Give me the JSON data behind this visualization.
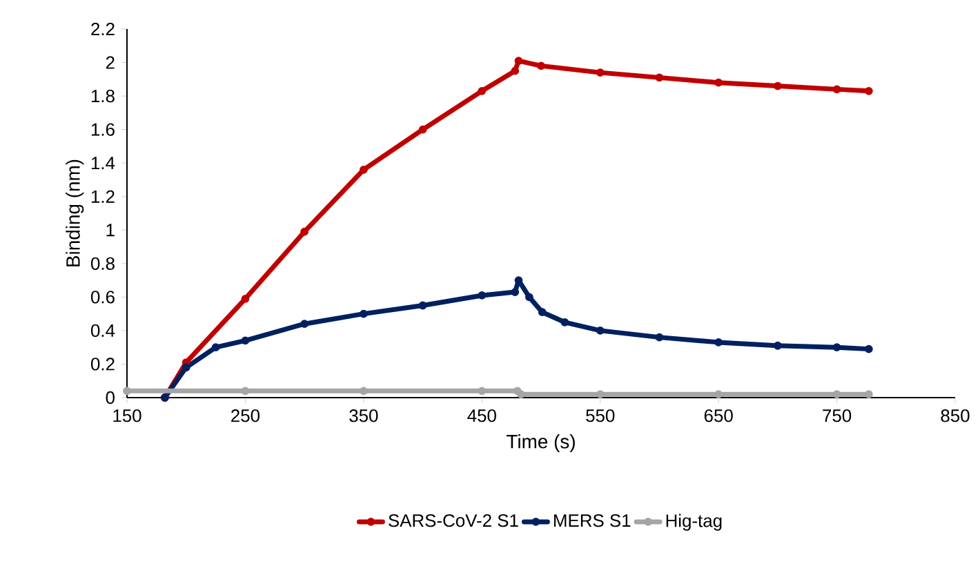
{
  "chart_data": {
    "type": "line",
    "xlabel": "Time (s)",
    "ylabel": "Binding (nm)",
    "xlim": [
      150,
      850
    ],
    "xticks": [
      150,
      250,
      350,
      450,
      550,
      650,
      750,
      850
    ],
    "ylim": [
      0,
      2.2
    ],
    "yticks": [
      0,
      0.2,
      0.4,
      0.6,
      0.8,
      1,
      1.2,
      1.4,
      1.6,
      1.8,
      2,
      2.2
    ],
    "grid": false,
    "legend": "bottom",
    "marker": "circle",
    "line_style": "solid",
    "series": [
      {
        "name": "SARS-CoV-2 S1",
        "color": "#c00000",
        "x": [
          182,
          200,
          250,
          300,
          350,
          400,
          450,
          478,
          481,
          500,
          550,
          600,
          650,
          700,
          750,
          777
        ],
        "values": [
          0,
          0.21,
          0.59,
          0.99,
          1.36,
          1.6,
          1.83,
          1.95,
          2.01,
          1.98,
          1.94,
          1.91,
          1.88,
          1.86,
          1.84,
          1.83
        ]
      },
      {
        "name": "MERS S1",
        "color": "#002060",
        "x": [
          182,
          200,
          225,
          250,
          300,
          350,
          400,
          450,
          478,
          481,
          490,
          501,
          520,
          550,
          600,
          650,
          700,
          750,
          777
        ],
        "values": [
          0,
          0.18,
          0.3,
          0.34,
          0.44,
          0.5,
          0.55,
          0.61,
          0.63,
          0.7,
          0.6,
          0.51,
          0.45,
          0.4,
          0.36,
          0.33,
          0.31,
          0.3,
          0.29
        ]
      },
      {
        "name": "Hig-tag",
        "color": "#a5a5a5",
        "x": [
          150,
          250,
          350,
          450,
          480,
          483,
          550,
          650,
          750,
          777
        ],
        "values": [
          0.04,
          0.04,
          0.04,
          0.04,
          0.04,
          0.02,
          0.02,
          0.02,
          0.02,
          0.02
        ]
      }
    ]
  }
}
